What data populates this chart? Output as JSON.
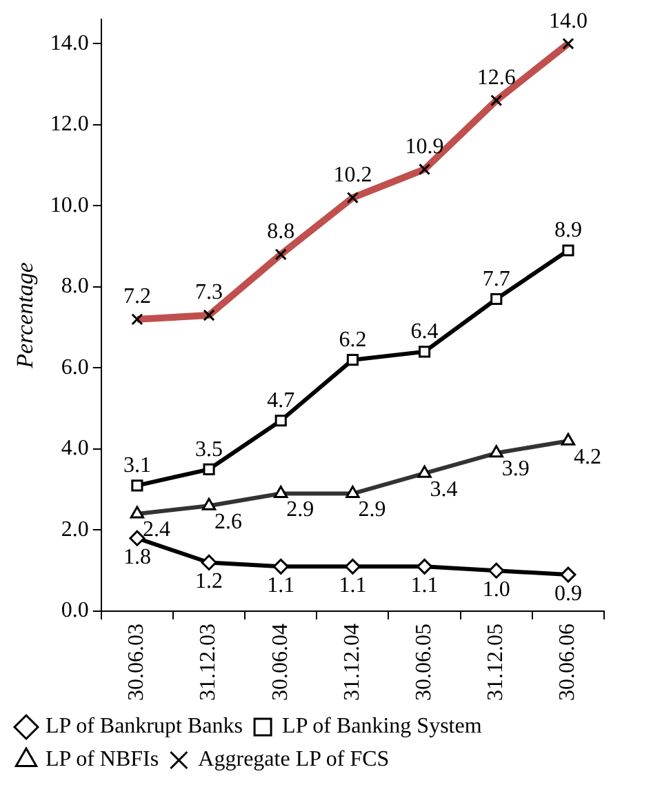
{
  "chart_data": {
    "type": "line",
    "ylabel": "Percentage",
    "categories": [
      "30.06.03",
      "31.12.03",
      "30.06.04",
      "31.12.04",
      "30.06.05",
      "31.12.05",
      "30.06.06"
    ],
    "series": [
      {
        "name": "LP of Bankrupt Banks",
        "color": "#000000",
        "marker": "diamond",
        "values": [
          1.8,
          1.2,
          1.1,
          1.1,
          1.1,
          1.0,
          0.9
        ],
        "value_labels": [
          "1.8",
          "1.2",
          "1.1",
          "1.1",
          "1.1",
          "1.0",
          "0.9"
        ]
      },
      {
        "name": "LP of Banking System",
        "color": "#000000",
        "marker": "square",
        "values": [
          3.1,
          3.5,
          4.7,
          6.2,
          6.4,
          7.7,
          8.9
        ],
        "value_labels": [
          "3.1",
          "3.5",
          "4.7",
          "6.2",
          "6.4",
          "7.7",
          "8.9"
        ]
      },
      {
        "name": "LP of NBFIs",
        "color": "#333333",
        "marker": "triangle",
        "values": [
          2.4,
          2.6,
          2.9,
          2.9,
          3.4,
          3.9,
          4.2
        ],
        "value_labels": [
          "2.4",
          "2.6",
          "2.9",
          "2.9",
          "3.4",
          "3.9",
          "4.2"
        ]
      },
      {
        "name": "Aggregate LP of FCS",
        "color": "#c0504d",
        "marker": "cross",
        "values": [
          7.2,
          7.3,
          8.8,
          10.2,
          10.9,
          12.6,
          14.0
        ],
        "value_labels": [
          "7.2",
          "7.3",
          "8.8",
          "10.2",
          "10.9",
          "12.6",
          "14.0"
        ]
      }
    ],
    "ylim": [
      0,
      14.6
    ],
    "yticks": [
      {
        "value": 0,
        "label": "0.0"
      },
      {
        "value": 2,
        "label": "2.0"
      },
      {
        "value": 4,
        "label": "4.0"
      },
      {
        "value": 6,
        "label": "6.0"
      },
      {
        "value": 8,
        "label": "8.0"
      },
      {
        "value": 10,
        "label": "10.0"
      },
      {
        "value": 12,
        "label": "12.0"
      },
      {
        "value": 14,
        "label": "14.0"
      }
    ],
    "grid": false,
    "legend": "bottom",
    "line_style": "solid"
  }
}
